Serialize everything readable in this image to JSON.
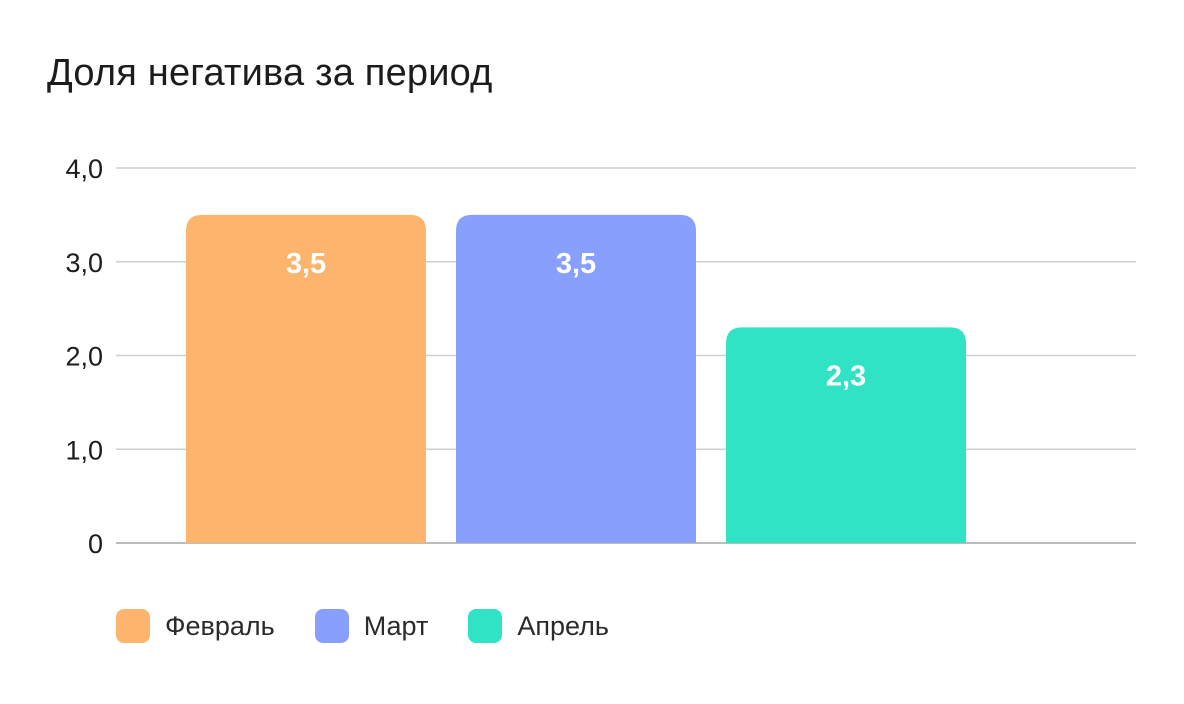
{
  "chart_data": {
    "type": "bar",
    "title": "Доля негатива за период",
    "categories": [
      "Февраль",
      "Март",
      "Апрель"
    ],
    "values": [
      3.5,
      3.5,
      2.3
    ],
    "value_labels": [
      "3,5",
      "3,5",
      "2,3"
    ],
    "colors": [
      "#FDB56E",
      "#889FFD",
      "#2FE3C4"
    ],
    "ylim": [
      0,
      4
    ],
    "yticks": [
      0,
      1,
      2,
      3,
      4
    ],
    "ytick_labels": [
      "0",
      "1,0",
      "2,0",
      "3,0",
      "4,0"
    ],
    "grid": true,
    "legend_position": "bottom-left"
  }
}
